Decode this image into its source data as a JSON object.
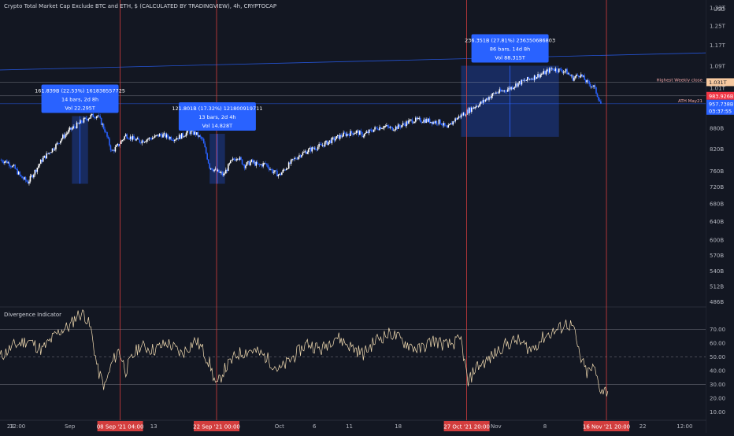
{
  "header": {
    "title": "Crypto Total Market Cap Exclude BTC and ETH, $ (CALCULATED BY TRADINGVIEW), 4h, CRYPTOCAP",
    "currency_label": "USD"
  },
  "indicator": {
    "title": "Divergence Indicator"
  },
  "chart_data": [
    {
      "type": "candlestick",
      "title": "Crypto Total Market Cap Exclude BTC and ETH, $ (CALCULATED BY TRADINGVIEW), 4h, CRYPTOCAP",
      "y_scale": "log",
      "y_unit": "USD",
      "ylim": [
        480,
        1330
      ],
      "y_ticks": [
        "1.33T",
        "1.25T",
        "1.17T",
        "1.09T",
        "1.01T",
        "880B",
        "820B",
        "760B",
        "720B",
        "680B",
        "640B",
        "600B",
        "570B",
        "540B",
        "512B",
        "486B"
      ],
      "y_tick_values": [
        1330,
        1250,
        1170,
        1090,
        1010,
        880,
        820,
        760,
        720,
        680,
        640,
        600,
        570,
        540,
        512,
        486
      ],
      "x_ticks": [
        "23",
        "12:00",
        "Sep",
        "13",
        "Oct",
        "6",
        "11",
        "18",
        "Nov",
        "8",
        "22",
        "12:00"
      ],
      "x_tick_days": [
        -8.5,
        -7.5,
        0,
        12,
        30,
        35,
        40,
        47,
        61,
        68,
        82,
        88
      ],
      "x_range_days": [
        -10,
        91
      ],
      "close_series": {
        "day": [
          -10,
          -9,
          -8,
          -7,
          -6,
          -5,
          -4,
          -3,
          -2,
          -1,
          0,
          1,
          2,
          3,
          4,
          5,
          6,
          7,
          8,
          9,
          10,
          11,
          12,
          13,
          14,
          15,
          16,
          17,
          18,
          19,
          20,
          21,
          22,
          23,
          24,
          25,
          26,
          27,
          28,
          29,
          30,
          31,
          32,
          33,
          34,
          35,
          36,
          37,
          38,
          39,
          40,
          41,
          42,
          43,
          44,
          45,
          46,
          47,
          48,
          49,
          50,
          51,
          52,
          53,
          54,
          55,
          56,
          57,
          58,
          59,
          60,
          61,
          62,
          63,
          64,
          65,
          66,
          67,
          68,
          69,
          70,
          71,
          72,
          73,
          74,
          75,
          76
        ],
        "value": [
          790,
          785,
          770,
          745,
          732,
          760,
          790,
          810,
          830,
          855,
          875,
          890,
          905,
          918,
          920,
          875,
          812,
          832,
          860,
          850,
          842,
          848,
          853,
          862,
          855,
          850,
          858,
          870,
          865,
          845,
          772,
          760,
          750,
          783,
          800,
          775,
          785,
          775,
          780,
          760,
          750,
          770,
          790,
          805,
          815,
          823,
          830,
          840,
          850,
          860,
          865,
          870,
          860,
          872,
          882,
          887,
          880,
          885,
          895,
          905,
          905,
          905,
          900,
          900,
          878,
          905,
          920,
          935,
          950,
          962,
          980,
          995,
          1000,
          1010,
          1025,
          1035,
          1045,
          1055,
          1065,
          1080,
          1075,
          1070,
          1045,
          1060,
          1030,
          1015,
          958
        ]
      },
      "horizontal_levels": [
        {
          "label": "Highest Weekly close",
          "value": 1031
        },
        {
          "label": "ATH May21",
          "value": 983.926
        }
      ],
      "price_tags": [
        {
          "text": "1.031T",
          "value": 1031,
          "color": "#f7c9a0"
        },
        {
          "text": "983.926B",
          "value": 983.926,
          "color": "#f23645"
        },
        {
          "text": "957.738B",
          "value": 957.738,
          "color": "#2962ff"
        },
        {
          "text": "03:37:55",
          "value": 947,
          "color": "#2962ff"
        }
      ],
      "measurements": [
        {
          "lines": [
            "161.839B (22.53%) 161838557725",
            "14 bars, 2d 8h",
            "Vol 22.295T"
          ],
          "from_day": 0.3,
          "to_day": 2.6,
          "low": 728,
          "high": 918
        },
        {
          "lines": [
            "121.801B (17.32%) 121800919711",
            "13 bars, 2d 4h",
            "Vol 14.828T"
          ],
          "from_day": 20,
          "to_day": 22.2,
          "low": 728,
          "high": 864
        },
        {
          "lines": [
            "236.351B (27.81%) 236350686803",
            "86 bars, 14d 8h",
            "Vol 88.315T"
          ],
          "from_day": 56,
          "to_day": 70,
          "low": 855,
          "high": 1091
        }
      ],
      "vertical_markers": [
        {
          "label": "08 Sep '21   04:00",
          "day": 7.2
        },
        {
          "label": "22 Sep '21   00:00",
          "day": 21.0
        },
        {
          "label": "27 Oct '21   20:00",
          "day": 56.8
        },
        {
          "label": "16 Nov '21   20:00",
          "day": 76.8
        }
      ],
      "colors": {
        "up": "#ffffff",
        "down": "#2962ff",
        "marker": "#d23d3d",
        "measure": "#2962ff",
        "trend": "#2962ff"
      }
    },
    {
      "type": "line",
      "title": "Divergence Indicator",
      "ylim": [
        5,
        85
      ],
      "y_ticks": [
        "70.00",
        "60.00",
        "50.00",
        "40.00",
        "30.00",
        "20.00",
        "10.00"
      ],
      "y_tick_values": [
        70,
        60,
        50,
        40,
        30,
        20,
        10
      ],
      "bands": [
        70,
        50,
        30
      ],
      "x": [
        -10,
        -8,
        -6,
        -4,
        -2,
        -1,
        0,
        1,
        2,
        3,
        4,
        5,
        6,
        7,
        8,
        9,
        10,
        12,
        14,
        16,
        18,
        19,
        20,
        21,
        22,
        24,
        26,
        28,
        30,
        32,
        34,
        36,
        38,
        40,
        42,
        44,
        46,
        48,
        50,
        52,
        54,
        56,
        57,
        58,
        60,
        62,
        64,
        66,
        68,
        70,
        71,
        72,
        73,
        74,
        75,
        76,
        77
      ],
      "y": [
        50,
        58,
        62,
        55,
        66,
        70,
        72,
        80,
        82,
        70,
        40,
        28,
        45,
        55,
        40,
        50,
        58,
        55,
        60,
        52,
        62,
        55,
        45,
        28,
        40,
        52,
        55,
        50,
        40,
        50,
        60,
        55,
        65,
        58,
        52,
        63,
        67,
        60,
        55,
        62,
        58,
        62,
        30,
        42,
        48,
        58,
        62,
        55,
        65,
        70,
        74,
        72,
        50,
        38,
        42,
        26,
        25
      ]
    }
  ]
}
